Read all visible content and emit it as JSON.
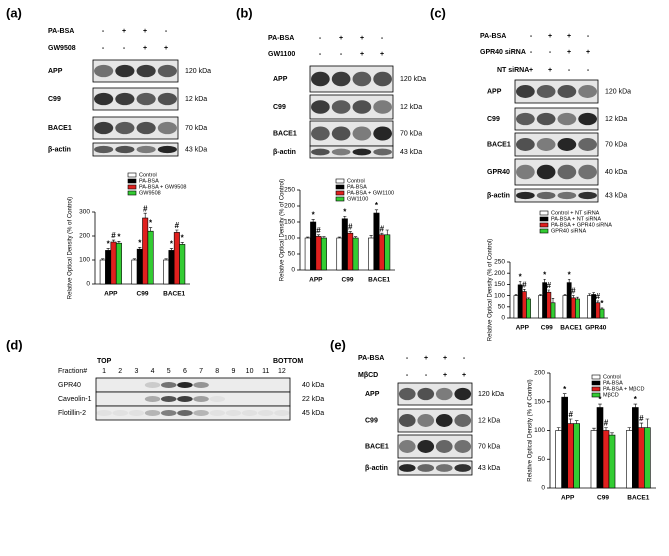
{
  "panels": [
    {
      "label": "(a)",
      "treatments": [
        {
          "name": "PA-BSA",
          "signs": [
            "-",
            "+",
            "+",
            "-"
          ]
        },
        {
          "name": "GW9508",
          "signs": [
            "-",
            "-",
            "+",
            "+"
          ]
        }
      ],
      "blots": [
        {
          "protein": "APP",
          "kda": "120 kDa"
        },
        {
          "protein": "C99",
          "kda": "12 kDa"
        },
        {
          "protein": "BACE1",
          "kda": "70 kDa"
        },
        {
          "protein": "β-actin",
          "kda": "43 kDa"
        }
      ]
    },
    {
      "label": "(b)",
      "treatments": [
        {
          "name": "PA-BSA",
          "signs": [
            "-",
            "+",
            "+",
            "-"
          ]
        },
        {
          "name": "GW1100",
          "signs": [
            "-",
            "-",
            "+",
            "+"
          ]
        }
      ],
      "blots": [
        {
          "protein": "APP",
          "kda": "120 kDa"
        },
        {
          "protein": "C99",
          "kda": "12 kDa"
        },
        {
          "protein": "BACE1",
          "kda": "70 kDa"
        },
        {
          "protein": "β-actin",
          "kda": "43 kDa"
        }
      ]
    },
    {
      "label": "(c)",
      "treatments": [
        {
          "name": "PA-BSA",
          "signs": [
            "-",
            "+",
            "+",
            "-"
          ]
        },
        {
          "name": "GPR40 siRNA",
          "signs": [
            "-",
            "-",
            "+",
            "+"
          ]
        },
        {
          "name": "NT siRNA",
          "signs": [
            "+",
            "+",
            "-",
            "-"
          ]
        }
      ],
      "blots": [
        {
          "protein": "APP",
          "kda": "120 kDa"
        },
        {
          "protein": "C99",
          "kda": "12 kDa"
        },
        {
          "protein": "BACE1",
          "kda": "70 kDa"
        },
        {
          "protein": "GPR40",
          "kda": "40 kDa"
        },
        {
          "protein": "β-actin",
          "kda": "43 kDa"
        }
      ]
    },
    {
      "label": "(e)",
      "treatments": [
        {
          "name": "PA-BSA",
          "signs": [
            "-",
            "+",
            "+",
            "-"
          ]
        },
        {
          "name": "MβCD",
          "signs": [
            "-",
            "-",
            "+",
            "+"
          ]
        }
      ],
      "blots": [
        {
          "protein": "APP",
          "kda": "120 kDa"
        },
        {
          "protein": "C99",
          "kda": "12 kDa"
        },
        {
          "protein": "BACE1",
          "kda": "70 kDa"
        },
        {
          "protein": "β-actin",
          "kda": "43 kDa"
        }
      ]
    }
  ],
  "fraction_panel": {
    "label": "(d)",
    "fraction_title": "Fraction#",
    "top": "TOP",
    "bottom": "BOTTOM",
    "fractions": [
      "1",
      "2",
      "3",
      "4",
      "5",
      "6",
      "7",
      "8",
      "9",
      "10",
      "11",
      "12"
    ],
    "blots": [
      {
        "protein": "GPR40",
        "kda": "40 kDa"
      },
      {
        "protein": "Caveolin-1",
        "kda": "22 kDa"
      },
      {
        "protein": "Flotillin-2",
        "kda": "45 kDa"
      }
    ]
  },
  "chart_data": [
    {
      "type": "bar",
      "y_label": "Relative Optical Density (% of Control)",
      "categories": [
        "APP",
        "C99",
        "BACE1"
      ],
      "ylim": [
        0,
        300
      ],
      "yticks": [
        0,
        100,
        200,
        300
      ],
      "series": [
        {
          "name": "Control",
          "color": "#ffffff",
          "values": [
            100,
            100,
            100
          ],
          "errors": [
            5,
            5,
            5
          ],
          "labels": [
            null,
            null,
            null
          ]
        },
        {
          "name": "PA-BSA",
          "color": "#000000",
          "values": [
            140,
            145,
            140
          ],
          "errors": [
            8,
            8,
            8
          ],
          "labels": [
            "*",
            "*",
            "*"
          ]
        },
        {
          "name": "PA-BSA + GW9508",
          "color": "#e0201e",
          "values": [
            175,
            275,
            215
          ],
          "errors": [
            8,
            20,
            10
          ],
          "labels": [
            "#",
            "#",
            "#"
          ]
        },
        {
          "name": "GW9508",
          "color": "#33cc33",
          "values": [
            170,
            220,
            165
          ],
          "errors": [
            8,
            15,
            8
          ],
          "labels": [
            "*",
            "*",
            "*"
          ]
        }
      ]
    },
    {
      "type": "bar",
      "y_label": "Relative Optical Density (% of Control)",
      "categories": [
        "APP",
        "C99",
        "BACE1"
      ],
      "ylim": [
        0,
        250
      ],
      "yticks": [
        0,
        50,
        100,
        150,
        200,
        250
      ],
      "series": [
        {
          "name": "Control",
          "color": "#ffffff",
          "values": [
            100,
            100,
            100
          ],
          "errors": [
            3,
            3,
            8
          ],
          "labels": [
            null,
            null,
            null
          ]
        },
        {
          "name": "PA-BSA",
          "color": "#000000",
          "values": [
            150,
            160,
            178
          ],
          "errors": [
            8,
            8,
            10
          ],
          "labels": [
            "*",
            "*",
            "*"
          ]
        },
        {
          "name": "PA-BSA + GW1100",
          "color": "#e0201e",
          "values": [
            105,
            115,
            110
          ],
          "errors": [
            5,
            5,
            5
          ],
          "labels": [
            "#",
            "#",
            "#"
          ]
        },
        {
          "name": "GW1100",
          "color": "#33cc33",
          "values": [
            100,
            100,
            110
          ],
          "errors": [
            4,
            4,
            15
          ],
          "labels": [
            null,
            null,
            null
          ]
        }
      ]
    },
    {
      "type": "bar",
      "y_label": "Relative Optical Density (% of Control)",
      "categories": [
        "APP",
        "C99",
        "BACE1",
        "GPR40"
      ],
      "ylim": [
        0,
        250
      ],
      "yticks": [
        0,
        50,
        100,
        150,
        200,
        250
      ],
      "series": [
        {
          "name": "Control + NT siRNA",
          "color": "#ffffff",
          "values": [
            100,
            100,
            100,
            100
          ],
          "errors": [
            4,
            4,
            4,
            8
          ],
          "labels": [
            null,
            null,
            null,
            null
          ]
        },
        {
          "name": "PA-BSA + NT siRNA",
          "color": "#000000",
          "values": [
            148,
            158,
            158,
            105
          ],
          "errors": [
            15,
            15,
            15,
            8
          ],
          "labels": [
            "*",
            "*",
            "*",
            null
          ]
        },
        {
          "name": "PA-BSA + GPR40 siRNA",
          "color": "#e0201e",
          "values": [
            118,
            115,
            90,
            68
          ],
          "errors": [
            10,
            10,
            10,
            8
          ],
          "labels": [
            "#",
            "#",
            "#",
            "#"
          ]
        },
        {
          "name": "GPR40 siRNA",
          "color": "#33cc33",
          "values": [
            85,
            68,
            85,
            40
          ],
          "errors": [
            5,
            20,
            8,
            5
          ],
          "labels": [
            null,
            null,
            null,
            "*"
          ]
        }
      ]
    },
    {
      "type": "bar",
      "y_label": "Relative Optical Density (% of Control)",
      "categories": [
        "APP",
        "C99",
        "BACE1"
      ],
      "ylim": [
        0,
        200
      ],
      "yticks": [
        0,
        50,
        100,
        150,
        200
      ],
      "series": [
        {
          "name": "Control",
          "color": "#ffffff",
          "values": [
            100,
            100,
            100
          ],
          "errors": [
            5,
            4,
            5
          ],
          "labels": [
            null,
            null,
            null
          ]
        },
        {
          "name": "PA-BSA",
          "color": "#000000",
          "values": [
            158,
            140,
            140
          ],
          "errors": [
            6,
            6,
            6
          ],
          "labels": [
            "*",
            "*",
            "*"
          ]
        },
        {
          "name": "PA-BSA + MβCD",
          "color": "#e0201e",
          "values": [
            112,
            100,
            105
          ],
          "errors": [
            8,
            5,
            8
          ],
          "labels": [
            "#",
            "#",
            "#"
          ]
        },
        {
          "name": "MβCD",
          "color": "#33cc33",
          "values": [
            112,
            92,
            105
          ],
          "errors": [
            5,
            4,
            15
          ],
          "labels": [
            null,
            null,
            null
          ]
        }
      ]
    }
  ]
}
